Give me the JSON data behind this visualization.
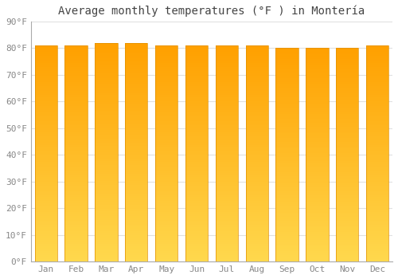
{
  "title": "Average monthly temperatures (°F ) in Montería",
  "months": [
    "Jan",
    "Feb",
    "Mar",
    "Apr",
    "May",
    "Jun",
    "Jul",
    "Aug",
    "Sep",
    "Oct",
    "Nov",
    "Dec"
  ],
  "values": [
    81,
    81,
    82,
    82,
    81,
    81,
    81,
    81,
    80,
    80,
    80,
    81
  ],
  "gradient_bottom": "#FFD84D",
  "gradient_top": "#FFA000",
  "bar_edge_color": "#E09000",
  "ylim": [
    0,
    90
  ],
  "yticks": [
    0,
    10,
    20,
    30,
    40,
    50,
    60,
    70,
    80,
    90
  ],
  "ytick_labels": [
    "0°F",
    "10°F",
    "20°F",
    "30°F",
    "40°F",
    "50°F",
    "60°F",
    "70°F",
    "80°F",
    "90°F"
  ],
  "bg_color": "#FFFFFF",
  "grid_color": "#E0E0E0",
  "title_fontsize": 10,
  "tick_fontsize": 8,
  "font_color": "#888888",
  "bar_width": 0.75,
  "n_gradient_steps": 100
}
